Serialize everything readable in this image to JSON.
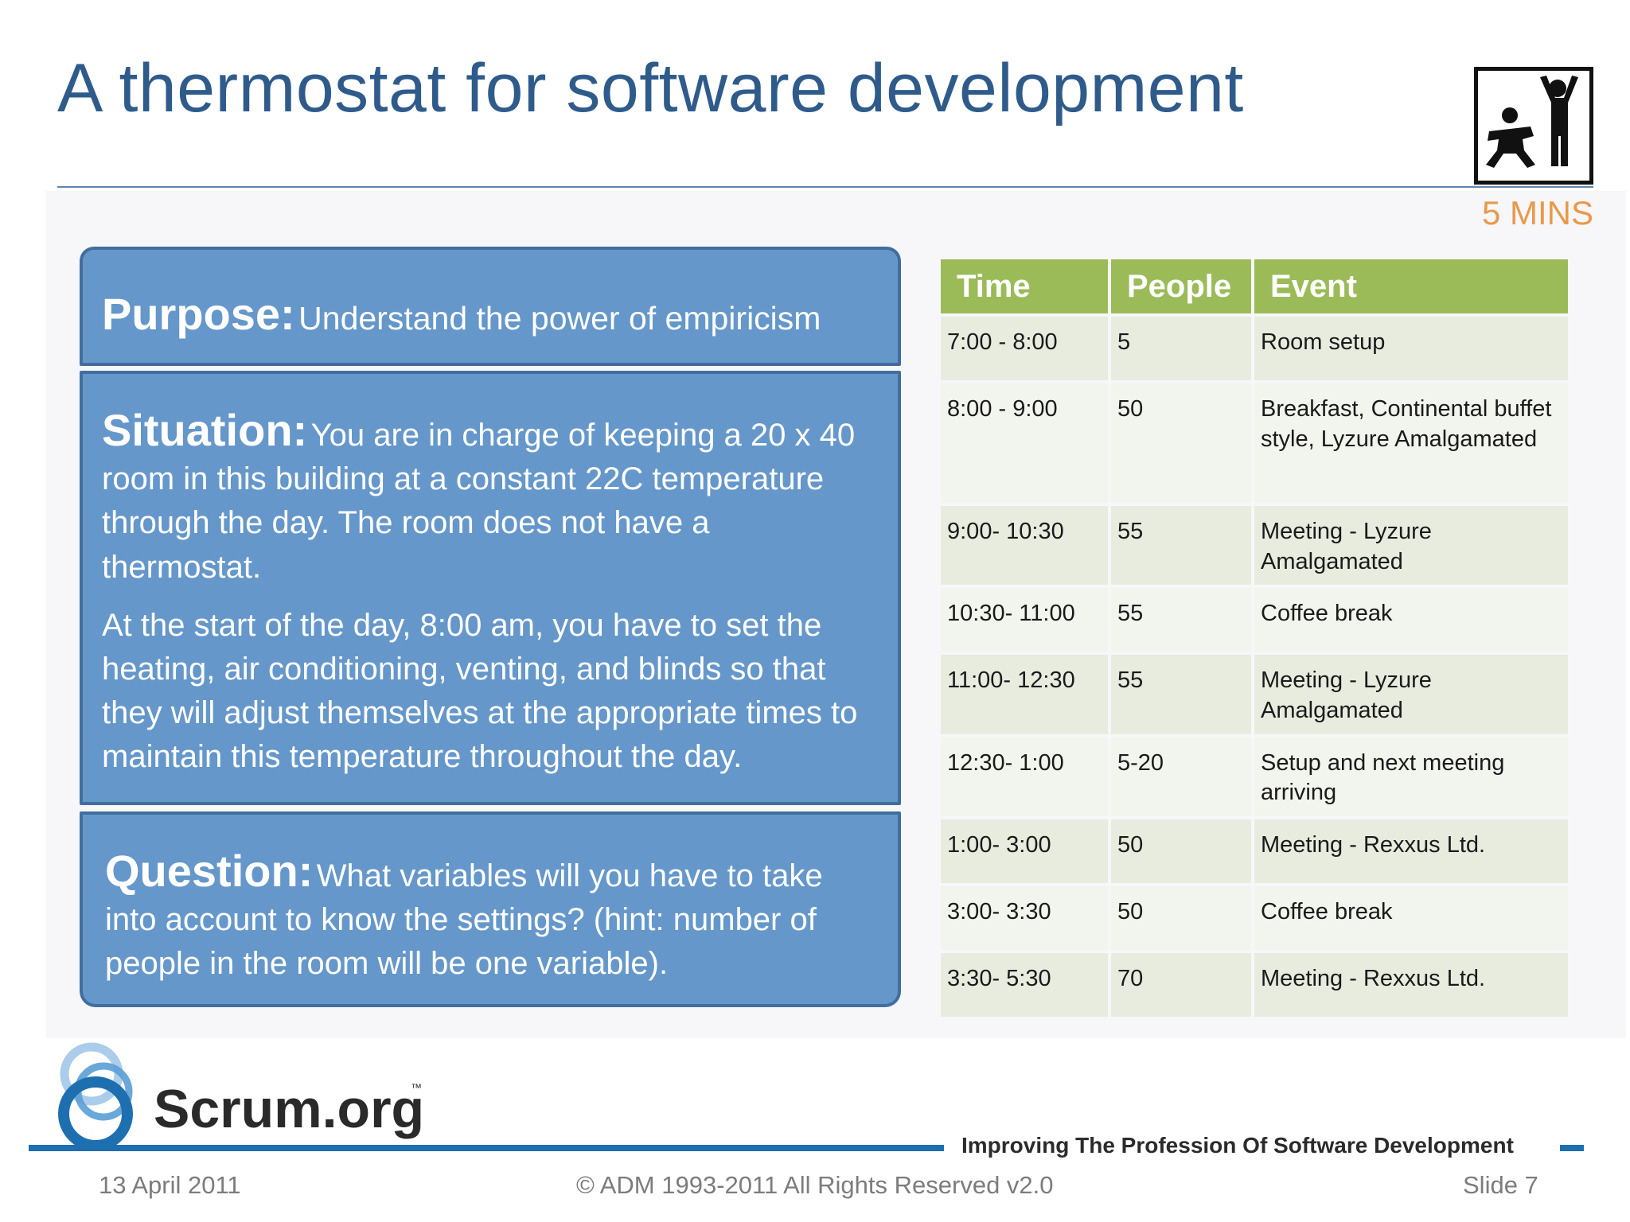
{
  "slide": {
    "title": "A thermostat for software development",
    "timer": "5 MINS",
    "activity_icon": "group-activity-icon"
  },
  "purpose": {
    "label": "Purpose:",
    "text": "Understand the power of empiricism"
  },
  "situation": {
    "label": "Situation:",
    "text1": "You are in charge of keeping a 20 x 40 room in this building at a constant 22C temperature through the day.  The room does not have a thermostat.",
    "text2": "At the start of the day, 8:00 am, you have to set the heating, air conditioning, venting, and blinds so that they will adjust themselves at the appropriate times to maintain this temperature throughout the day."
  },
  "question": {
    "label": "Question:",
    "text": "What variables will you have to take into account to know the settings? (hint: number of people in the room will be one variable)."
  },
  "schedule": {
    "headers": [
      "Time",
      "People",
      "Event"
    ],
    "rows": [
      {
        "time": "7:00 - 8:00",
        "people": "5",
        "event": "Room setup"
      },
      {
        "time": "8:00 - 9:00",
        "people": "50",
        "event": "Breakfast, Continental buffet style, Lyzure Amalgamated"
      },
      {
        "time": "9:00- 10:30",
        "people": "55",
        "event": "Meeting - Lyzure Amalgamated"
      },
      {
        "time": "10:30- 11:00",
        "people": "55",
        "event": "Coffee break"
      },
      {
        "time": "11:00- 12:30",
        "people": "55",
        "event": "Meeting - Lyzure Amalgamated"
      },
      {
        "time": "12:30- 1:00",
        "people": "5-20",
        "event": "Setup and next meeting arriving"
      },
      {
        "time": "1:00- 3:00",
        "people": "50",
        "event": "Meeting - Rexxus Ltd."
      },
      {
        "time": "3:00- 3:30",
        "people": "50",
        "event": "Coffee break"
      },
      {
        "time": "3:30- 5:30",
        "people": "70",
        "event": "Meeting - Rexxus Ltd."
      }
    ]
  },
  "footer": {
    "logo_text": "Scrum.org",
    "tagline": "Improving The Profession Of Software Development",
    "date": "13 April 2011",
    "copyright": "© ADM 1993-2011 All Rights Reserved v2.0",
    "slide_number": "Slide 7"
  },
  "colors": {
    "title": "#2f5b8b",
    "panel": "#6597ca",
    "table_header": "#9bbb59",
    "timer": "#e89a4c",
    "brand_blue": "#1e6fb0"
  }
}
